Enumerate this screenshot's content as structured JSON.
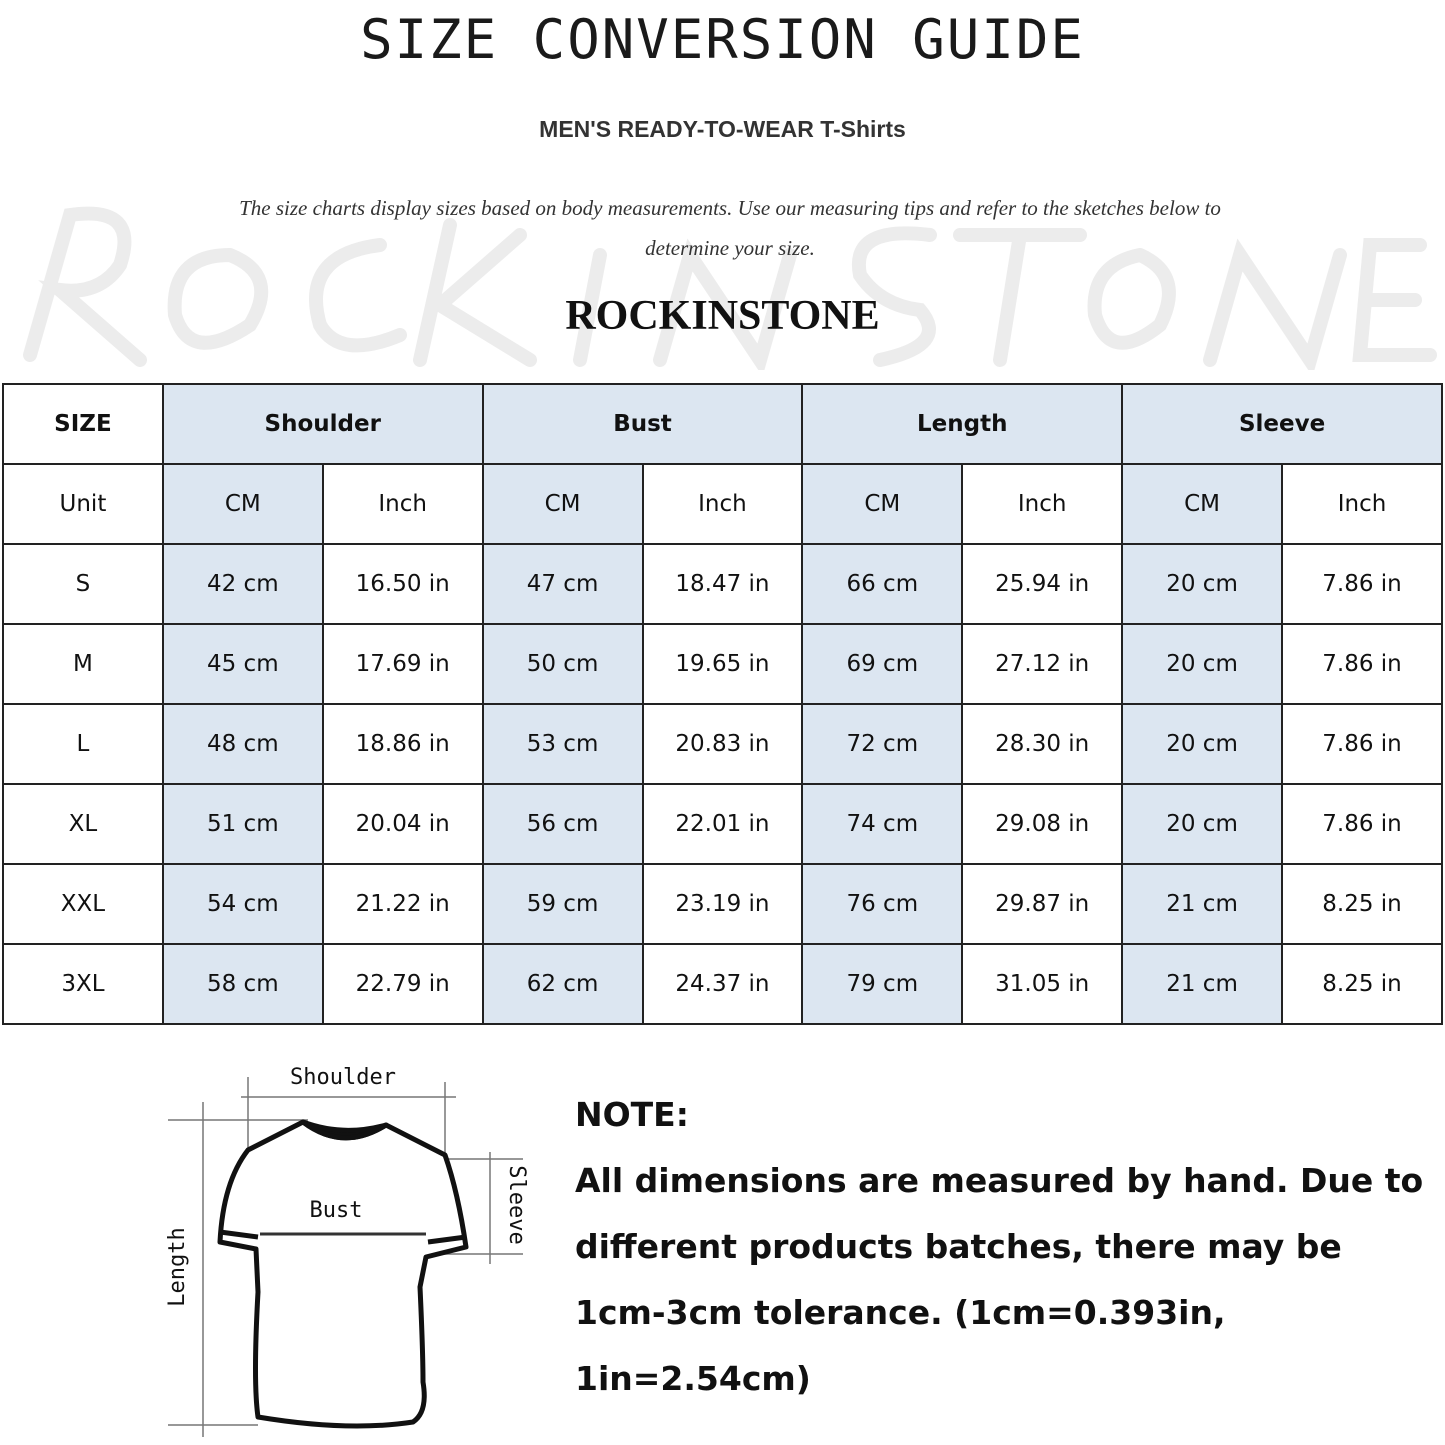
{
  "header": {
    "title": "SIZE CONVERSION GUIDE",
    "subtitle": "MEN'S READY-TO-WEAR T-Shirts",
    "description": "The size charts display sizes based on body measurements. Use our measuring tips and refer to the sketches below to determine your size.",
    "watermark": "ROCKINSTONE",
    "brand": "ROCKINSTONE"
  },
  "table": {
    "size_label": "SIZE",
    "groups": [
      "Shoulder",
      "Bust",
      "Length",
      "Sleeve"
    ],
    "unit_label": "Unit",
    "units": [
      "CM",
      "Inch",
      "CM",
      "Inch",
      "CM",
      "Inch",
      "CM",
      "Inch"
    ],
    "rows": [
      {
        "size": "S",
        "values": [
          "42 cm",
          "16.50 in",
          "47 cm",
          "18.47  in",
          "66 cm",
          "25.94  in",
          "20 cm",
          "7.86  in"
        ]
      },
      {
        "size": "M",
        "values": [
          "45 cm",
          "17.69  in",
          "50 cm",
          "19.65  in",
          "69 cm",
          "27.12  in",
          "20 cm",
          "7.86  in"
        ]
      },
      {
        "size": "L",
        "values": [
          "48 cm",
          "18.86  in",
          "53 cm",
          "20.83  in",
          "72 cm",
          "28.30  in",
          "20 cm",
          "7.86  in"
        ]
      },
      {
        "size": "XL",
        "values": [
          "51 cm",
          "20.04  in",
          "56 cm",
          "22.01  in",
          "74 cm",
          "29.08  in",
          "20 cm",
          "7.86  in"
        ]
      },
      {
        "size": "XXL",
        "values": [
          "54 cm",
          "21.22  in",
          "59 cm",
          "23.19  in",
          "76 cm",
          "29.87  in",
          "21 cm",
          "8.25  in"
        ]
      },
      {
        "size": "3XL",
        "values": [
          "58 cm",
          "22.79  in",
          "62 cm",
          "24.37  in",
          "79 cm",
          "31.05  in",
          "21 cm",
          "8.25  in"
        ]
      }
    ],
    "header_fill": "#dce6f1"
  },
  "diagram": {
    "shoulder": "Shoulder",
    "bust": "Bust",
    "length": "Length",
    "sleeve": "Sleeve"
  },
  "note": {
    "heading": "NOTE:",
    "body": "All dimensions are measured by hand. Due to different products batches, there may be 1cm-3cm tolerance. (1cm=0.393in, 1in=2.54cm)"
  }
}
